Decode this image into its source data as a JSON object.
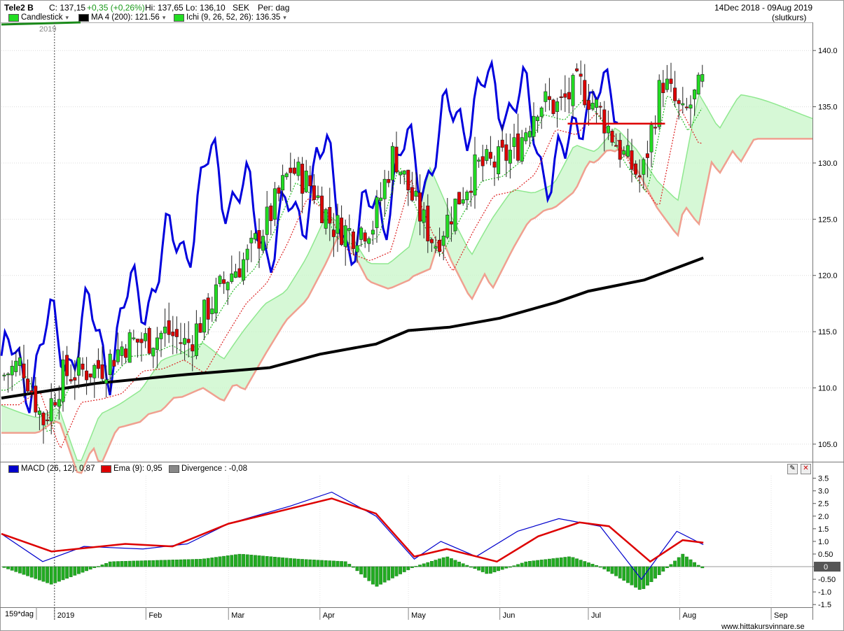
{
  "header": {
    "ticker": "Tele2 B",
    "close": "C: 137,15",
    "change": "+0,35 (+0,26%)",
    "high": "Hi: 137,65",
    "low": "Lo: 136,10",
    "currency": "SEK",
    "period": "Per: dag",
    "date_range": "14Dec 2018 - 09Aug 2019",
    "price_type": "(slutkurs)"
  },
  "legend_top": [
    {
      "label": "Candlestick",
      "color": "#22dd22"
    },
    {
      "label": "MA 4 (200): 121.56",
      "color": "#000000"
    },
    {
      "label": "Ichi (9, 26, 52, 26): 136.35",
      "color": "#22dd22"
    }
  ],
  "legend_bottom": [
    {
      "label": "MACD (26, 12): 0,87",
      "color": "#0000cc"
    },
    {
      "label": "Ema (9): 0,95",
      "color": "#dd0000"
    },
    {
      "label": "Divergence : -0,08",
      "color": "#888888"
    }
  ],
  "year_marker": "2019",
  "footer": {
    "periods": "159*dag",
    "source": "www.hittakursvinnare.se"
  },
  "colors": {
    "up": "#22dd22",
    "down": "#dd0000",
    "ma": "#000000",
    "chikou": "#0000dd",
    "cloud_fill": "#c8f5c8",
    "senkou_a": "#8fe88f",
    "senkou_b": "#f0a090",
    "macd": "#0000cc",
    "signal": "#dd0000",
    "histogram": "#22aa22"
  },
  "chart_data": [
    {
      "type": "candlestick",
      "title": "Tele2 B",
      "ylim": [
        103.5,
        142.5
      ],
      "y_ticks": [
        "105.0",
        "110.0",
        "115.0",
        "120.0",
        "125.0",
        "130.0",
        "135.0",
        "140.0"
      ],
      "x_ticks": [
        "2019",
        "Feb",
        "Mar",
        "Apr",
        "May",
        "Jun",
        "Jul",
        "Aug",
        "Sep"
      ],
      "close_series": [
        {
          "date": "2018-12-14",
          "close": 111.0
        },
        {
          "date": "2018-12-21",
          "close": 112.3
        },
        {
          "date": "2018-12-28",
          "close": 107.0
        },
        {
          "date": "2019-01-04",
          "close": 111.2
        },
        {
          "date": "2019-01-11",
          "close": 111.5
        },
        {
          "date": "2019-01-18",
          "close": 112.0
        },
        {
          "date": "2019-01-25",
          "close": 114.0
        },
        {
          "date": "2019-02-01",
          "close": 114.2
        },
        {
          "date": "2019-02-08",
          "close": 115.0
        },
        {
          "date": "2019-02-15",
          "close": 113.8
        },
        {
          "date": "2019-02-22",
          "close": 117.0
        },
        {
          "date": "2019-03-01",
          "close": 120.0
        },
        {
          "date": "2019-03-08",
          "close": 121.8
        },
        {
          "date": "2019-03-15",
          "close": 125.3
        },
        {
          "date": "2019-03-22",
          "close": 129.5
        },
        {
          "date": "2019-03-29",
          "close": 128.0
        },
        {
          "date": "2019-04-05",
          "close": 124.5
        },
        {
          "date": "2019-04-12",
          "close": 123.8
        },
        {
          "date": "2019-04-19",
          "close": 124.6
        },
        {
          "date": "2019-04-26",
          "close": 131.0
        },
        {
          "date": "2019-05-03",
          "close": 126.4
        },
        {
          "date": "2019-05-10",
          "close": 122.8
        },
        {
          "date": "2019-05-17",
          "close": 126.4
        },
        {
          "date": "2019-05-24",
          "close": 129.6
        },
        {
          "date": "2019-05-31",
          "close": 130.0
        },
        {
          "date": "2019-06-07",
          "close": 131.5
        },
        {
          "date": "2019-06-14",
          "close": 135.5
        },
        {
          "date": "2019-06-21",
          "close": 135.0
        },
        {
          "date": "2019-06-28",
          "close": 137.0
        },
        {
          "date": "2019-07-05",
          "close": 134.5
        },
        {
          "date": "2019-07-12",
          "close": 131.0
        },
        {
          "date": "2019-07-19",
          "close": 128.5
        },
        {
          "date": "2019-07-26",
          "close": 137.5
        },
        {
          "date": "2019-08-02",
          "close": 134.0
        },
        {
          "date": "2019-08-09",
          "close": 137.15
        }
      ],
      "ma_200": [
        {
          "date": "2018-12-14",
          "value": 109.1
        },
        {
          "date": "2019-01-15",
          "value": 110.4
        },
        {
          "date": "2019-02-15",
          "value": 111.2
        },
        {
          "date": "2019-03-15",
          "value": 111.8
        },
        {
          "date": "2019-04-01",
          "value": 113.0
        },
        {
          "date": "2019-04-20",
          "value": 113.9
        },
        {
          "date": "2019-05-01",
          "value": 115.1
        },
        {
          "date": "2019-05-15",
          "value": 115.4
        },
        {
          "date": "2019-06-01",
          "value": 116.2
        },
        {
          "date": "2019-06-20",
          "value": 117.6
        },
        {
          "date": "2019-07-01",
          "value": 118.6
        },
        {
          "date": "2019-07-20",
          "value": 119.6
        },
        {
          "date": "2019-08-09",
          "value": 121.56
        }
      ],
      "range_marker": {
        "from": "2019-06-24",
        "to": "2019-07-27",
        "value": 133.5
      }
    },
    {
      "type": "line",
      "title": "MACD (26, 12)",
      "ylim": [
        -1.55,
        3.6
      ],
      "y_ticks": [
        "3.5",
        "3.0",
        "2.5",
        "2.0",
        "1.5",
        "1.0",
        "0.50",
        "0",
        "-0.50",
        "-1.0",
        "-1.5"
      ],
      "series": [
        {
          "name": "MACD (26, 12)",
          "values": [
            {
              "date": "2018-12-14",
              "value": 1.3
            },
            {
              "date": "2018-12-28",
              "value": 0.2
            },
            {
              "date": "2019-01-11",
              "value": 0.8
            },
            {
              "date": "2019-01-31",
              "value": 0.7
            },
            {
              "date": "2019-02-15",
              "value": 0.9
            },
            {
              "date": "2019-03-01",
              "value": 1.7
            },
            {
              "date": "2019-03-22",
              "value": 2.4
            },
            {
              "date": "2019-04-05",
              "value": 2.95
            },
            {
              "date": "2019-04-20",
              "value": 2.0
            },
            {
              "date": "2019-05-03",
              "value": 0.3
            },
            {
              "date": "2019-05-12",
              "value": 1.0
            },
            {
              "date": "2019-05-24",
              "value": 0.4
            },
            {
              "date": "2019-06-07",
              "value": 1.4
            },
            {
              "date": "2019-06-21",
              "value": 1.9
            },
            {
              "date": "2019-07-05",
              "value": 1.6
            },
            {
              "date": "2019-07-19",
              "value": -0.5
            },
            {
              "date": "2019-07-31",
              "value": 1.4
            },
            {
              "date": "2019-08-09",
              "value": 0.87
            }
          ]
        },
        {
          "name": "Ema (9)",
          "values": [
            {
              "date": "2018-12-14",
              "value": 1.3
            },
            {
              "date": "2018-12-31",
              "value": 0.6
            },
            {
              "date": "2019-01-25",
              "value": 0.9
            },
            {
              "date": "2019-02-10",
              "value": 0.8
            },
            {
              "date": "2019-03-01",
              "value": 1.7
            },
            {
              "date": "2019-03-22",
              "value": 2.3
            },
            {
              "date": "2019-04-05",
              "value": 2.7
            },
            {
              "date": "2019-04-20",
              "value": 2.1
            },
            {
              "date": "2019-05-03",
              "value": 0.4
            },
            {
              "date": "2019-05-14",
              "value": 0.7
            },
            {
              "date": "2019-05-31",
              "value": 0.2
            },
            {
              "date": "2019-06-14",
              "value": 1.2
            },
            {
              "date": "2019-06-28",
              "value": 1.75
            },
            {
              "date": "2019-07-08",
              "value": 1.6
            },
            {
              "date": "2019-07-22",
              "value": 0.2
            },
            {
              "date": "2019-08-02",
              "value": 1.05
            },
            {
              "date": "2019-08-09",
              "value": 0.95
            }
          ]
        },
        {
          "name": "Divergence",
          "values": [
            {
              "date": "2018-12-14",
              "value": 0.0
            },
            {
              "date": "2018-12-31",
              "value": -0.7
            },
            {
              "date": "2019-01-20",
              "value": 0.2
            },
            {
              "date": "2019-02-20",
              "value": 0.3
            },
            {
              "date": "2019-03-05",
              "value": 0.5
            },
            {
              "date": "2019-03-25",
              "value": 0.3
            },
            {
              "date": "2019-04-10",
              "value": 0.2
            },
            {
              "date": "2019-04-20",
              "value": -0.8
            },
            {
              "date": "2019-05-03",
              "value": 0.0
            },
            {
              "date": "2019-05-14",
              "value": 0.4
            },
            {
              "date": "2019-05-28",
              "value": -0.3
            },
            {
              "date": "2019-06-10",
              "value": 0.2
            },
            {
              "date": "2019-06-25",
              "value": 0.4
            },
            {
              "date": "2019-07-05",
              "value": 0.0
            },
            {
              "date": "2019-07-19",
              "value": -0.95
            },
            {
              "date": "2019-08-02",
              "value": 0.5
            },
            {
              "date": "2019-08-09",
              "value": -0.08
            }
          ]
        }
      ]
    }
  ]
}
